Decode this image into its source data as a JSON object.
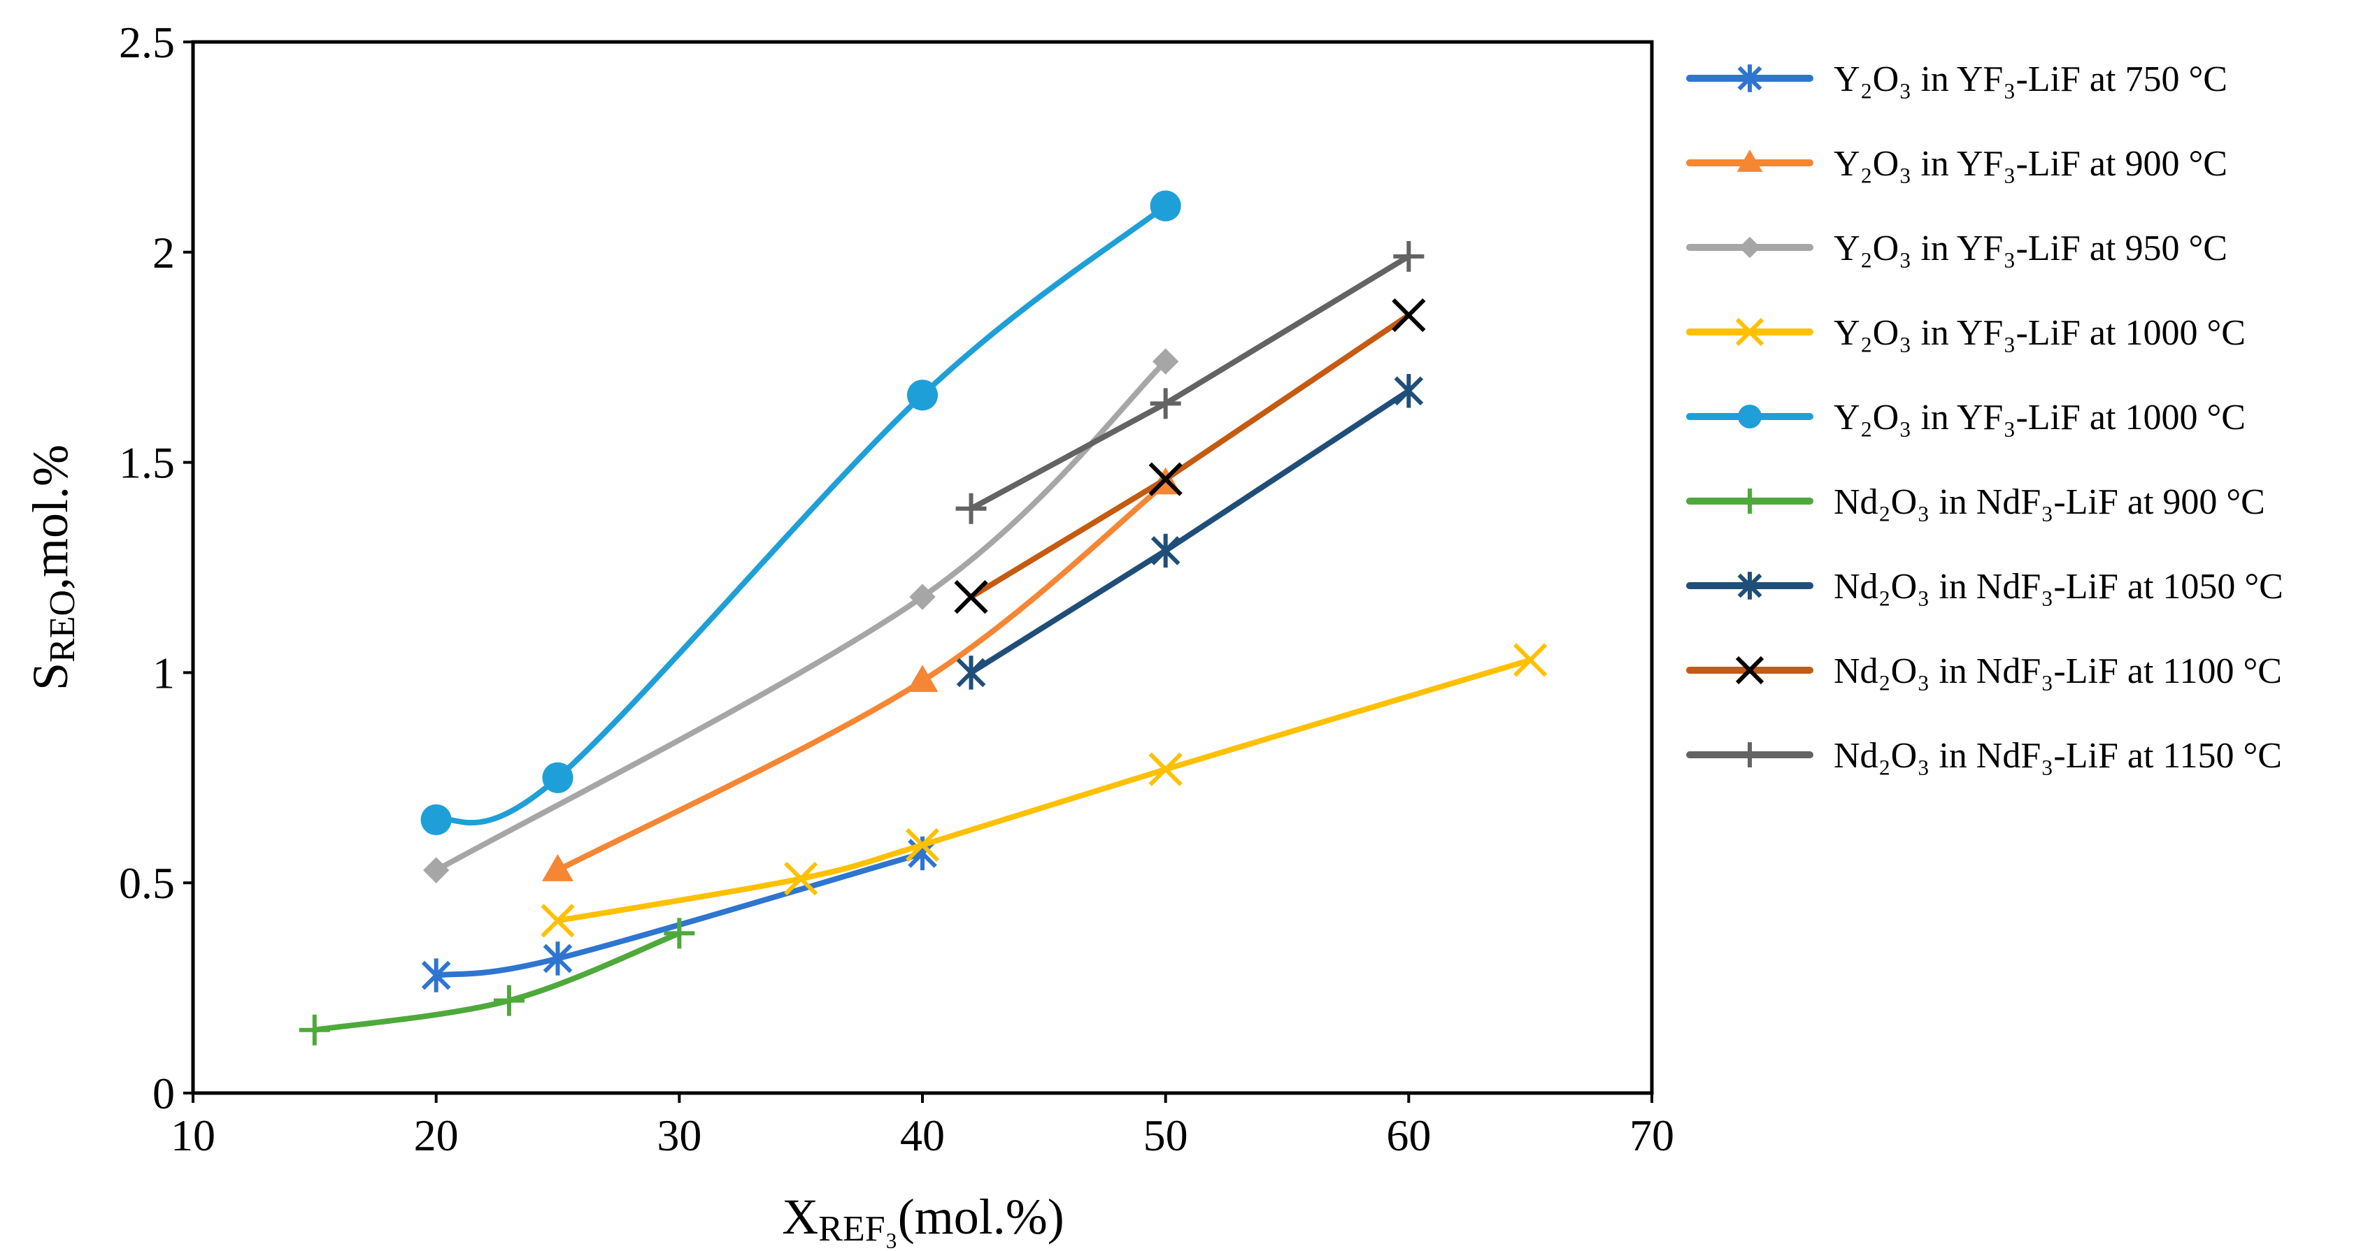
{
  "chart_data": {
    "type": "line",
    "title": "",
    "xlabel": "XREF₃(mol.%)",
    "ylabel": "SREO,mol.%",
    "xlim": [
      10,
      70
    ],
    "ylim": [
      0,
      2.5
    ],
    "x_ticks": [
      "10",
      "20",
      "30",
      "40",
      "50",
      "60",
      "70"
    ],
    "y_ticks": [
      "0",
      "0.5",
      "1",
      "1.5",
      "2",
      "2.5"
    ],
    "grid": false,
    "legend_position": "right",
    "series": [
      {
        "name": "Y₂O₃ in YF₃-LiF at 750 °C",
        "color": "#2E75D0",
        "marker": "asterisk",
        "smooth": true,
        "x": [
          20,
          25,
          40
        ],
        "y": [
          0.28,
          0.32,
          0.57
        ]
      },
      {
        "name": "Y₂O₃ in YF₃-LiF at 900 °C",
        "color": "#F58634",
        "marker": "triangle",
        "smooth": true,
        "x": [
          25,
          40,
          50
        ],
        "y": [
          0.53,
          0.98,
          1.45
        ]
      },
      {
        "name": "Y₂O₃ in YF₃-LiF at 950 °C",
        "color": "#A6A6A6",
        "marker": "diamond",
        "smooth": true,
        "x": [
          20,
          40,
          50
        ],
        "y": [
          0.53,
          1.18,
          1.74
        ]
      },
      {
        "name": "Y₂O₃ in YF₃-LiF at 1000 °C",
        "color": "#FFC000",
        "marker": "x",
        "smooth": true,
        "x": [
          25,
          35,
          40,
          50,
          65
        ],
        "y": [
          0.41,
          0.51,
          0.59,
          0.77,
          1.03
        ]
      },
      {
        "name": "Y₂O₃ in YF₃-LiF at 1000 °C",
        "color": "#1F9FD8",
        "marker": "circle",
        "smooth": true,
        "x": [
          20,
          25,
          40,
          50
        ],
        "y": [
          0.65,
          0.75,
          1.66,
          2.11
        ]
      },
      {
        "name": "Nd₂O₃ in NdF₃-LiF at 900 °C",
        "color": "#4EA93B",
        "marker": "plus",
        "smooth": true,
        "x": [
          15,
          23,
          30
        ],
        "y": [
          0.15,
          0.22,
          0.38
        ]
      },
      {
        "name": "Nd₂O₃ in NdF₃-LiF at 1050 °C",
        "color": "#1F4E79",
        "marker": "asterisk",
        "smooth": false,
        "x": [
          42,
          50,
          60
        ],
        "y": [
          1.0,
          1.29,
          1.67
        ]
      },
      {
        "name": "Nd₂O₃ in NdF₃-LiF at 1100 °C",
        "color": "#C55A11",
        "marker": "x",
        "marker_color": "#000000",
        "smooth": false,
        "x": [
          42,
          50,
          60
        ],
        "y": [
          1.18,
          1.46,
          1.85
        ]
      },
      {
        "name": "Nd₂O₃ in NdF₃-LiF at 1150 °C",
        "color": "#636363",
        "marker": "plus",
        "smooth": false,
        "x": [
          42,
          50,
          60
        ],
        "y": [
          1.39,
          1.64,
          1.99
        ]
      }
    ]
  }
}
